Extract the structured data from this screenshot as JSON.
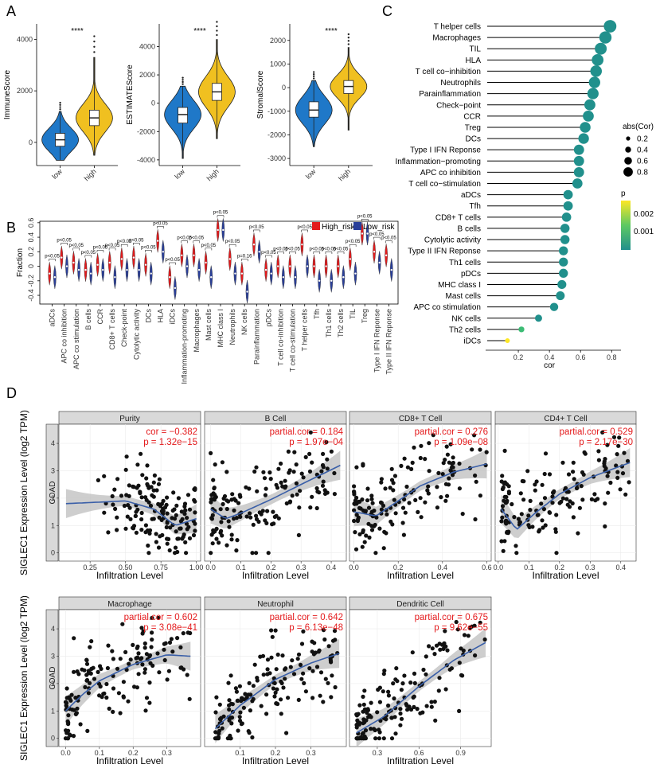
{
  "panels": {
    "a": "A",
    "b": "B",
    "c": "C",
    "d": "D"
  },
  "colors": {
    "low": "#1f78c8",
    "high": "#f0c020",
    "high_risk": "#e31a1c",
    "low_risk": "#2a3f9a",
    "lollipop": "#21908c",
    "smooth": "#3a5fa8",
    "ci": "#bdbdbd",
    "stat": "#e41a1c"
  },
  "violins_a": [
    {
      "ylabel": "ImmuneScore",
      "ticks": [
        0,
        2000,
        4000
      ],
      "ylim": [
        -900,
        4600
      ],
      "sig": "****",
      "groups": [
        "low",
        "high"
      ],
      "summary": [
        {
          "min": -700,
          "q1": -150,
          "median": 100,
          "q3": 350,
          "max": 1200
        },
        {
          "min": -500,
          "q1": 650,
          "median": 950,
          "q3": 1250,
          "max": 3300
        }
      ]
    },
    {
      "ylabel": "ESTIMATEScore",
      "ticks": [
        -4000,
        -2000,
        0,
        2000,
        4000
      ],
      "ylim": [
        -4400,
        5600
      ],
      "sig": "****",
      "groups": [
        "low",
        "high"
      ],
      "summary": [
        {
          "min": -3900,
          "q1": -1400,
          "median": -800,
          "q3": -300,
          "max": 1200
        },
        {
          "min": -2500,
          "q1": 200,
          "median": 800,
          "q3": 1400,
          "max": 4500
        }
      ]
    },
    {
      "ylabel": "StromalScore",
      "ticks": [
        -3000,
        -2000,
        -1000,
        0,
        1000,
        2000
      ],
      "ylim": [
        -3300,
        2700
      ],
      "sig": "****",
      "groups": [
        "low",
        "high"
      ],
      "summary": [
        {
          "min": -2500,
          "q1": -1250,
          "median": -950,
          "q3": -600,
          "max": 300
        },
        {
          "min": -1800,
          "q1": -250,
          "median": 50,
          "q3": 300,
          "max": 1700
        }
      ]
    }
  ],
  "violin_b": {
    "ylabel": "Fraction",
    "yticks": [
      -0.4,
      -0.2,
      0.0,
      0.2,
      0.4,
      0.6
    ],
    "ylim": [
      -0.52,
      0.62
    ],
    "legend": [
      "High_risk",
      "Low_risk"
    ],
    "categories": [
      "aDCs",
      "APC co inhibition",
      "APC co stimulation",
      "B cells",
      "CCR",
      "CD8+ T cells",
      "Check-point",
      "Cytolytic activity",
      "DCs",
      "HLA",
      "iDCs",
      "Inflammation-promoting",
      "Macrophages",
      "Mast cells",
      "MHC class I",
      "Neutrophils",
      "NK cells",
      "Parainflammation",
      "pDCs",
      "T cell co-inhibition",
      "T cell co-stimulation",
      "T helper cells",
      "Tfh",
      "Th1 cells",
      "Th2 cells",
      "TIL",
      "Treg",
      "Type I IFN Reponse",
      "Type II IFN Reponse"
    ],
    "high_medians": [
      -0.1,
      0.12,
      0.05,
      -0.05,
      0.02,
      0.05,
      0.1,
      0.12,
      0.02,
      0.35,
      -0.15,
      0.15,
      0.15,
      0.05,
      0.5,
      0.1,
      -0.1,
      0.3,
      -0.05,
      0.0,
      0.0,
      0.3,
      0.0,
      0.0,
      0.0,
      0.1,
      0.45,
      0.2,
      0.15
    ],
    "low_medians": [
      -0.15,
      0.0,
      -0.05,
      -0.1,
      -0.05,
      -0.15,
      -0.05,
      -0.05,
      -0.1,
      0.2,
      -0.3,
      0.0,
      -0.05,
      -0.15,
      0.5,
      -0.1,
      -0.35,
      0.2,
      -0.1,
      -0.15,
      -0.15,
      0.0,
      -0.2,
      -0.2,
      -0.15,
      -0.1,
      0.45,
      0.05,
      -0.05
    ],
    "pvalues": [
      "p<0.05",
      "p<0.05",
      "p<0.05",
      "p<0.05",
      "p<0.05",
      "p<0.05",
      "p<0.05",
      "p<0.05",
      "p<0.05",
      "p<0.05",
      "p<0.05",
      "p<0.05",
      "p<0.05",
      "p<0.05",
      "p<0.05",
      "p<0.05",
      "p=0.16",
      "p<0.05",
      "p<0.05",
      "p<0.05",
      "p<0.05",
      "p<0.05",
      "p<0.05",
      "p<0.05",
      "p<0.05",
      "p<0.05",
      "p<0.05",
      "p<0.05",
      "p<0.05"
    ]
  },
  "chart_data": [
    {
      "type": "lollipop",
      "xlabel": "cor",
      "xticks": [
        0.2,
        0.4,
        0.6,
        0.8
      ],
      "xlim": [
        0.0,
        0.86
      ],
      "legend_size_title": "abs(Cor)",
      "legend_size_values": [
        "0.2",
        "0.4",
        "0.6",
        "0.8"
      ],
      "legend_color_title": "p",
      "legend_color_values": [
        "0.002",
        "0.001"
      ],
      "categories": [
        "T helper cells",
        "Macrophages",
        "TIL",
        "HLA",
        "T cell co−inhibition",
        "Neutrophils",
        "Parainflammation",
        "Check−point",
        "CCR",
        "Treg",
        "DCs",
        "Type I IFN Reponse",
        "Inflammation−promoting",
        "APC co inhibition",
        "T cell co−stimulation",
        "aDCs",
        "Tfh",
        "CD8+ T cells",
        "B cells",
        "Cytolytic activity",
        "Type II IFN Reponse",
        "Th1 cells",
        "pDCs",
        "MHC class I",
        "Mast cells",
        "APC co stimulation",
        "NK cells",
        "Th2 cells",
        "iDCs"
      ],
      "values": [
        0.79,
        0.76,
        0.73,
        0.71,
        0.7,
        0.69,
        0.68,
        0.66,
        0.65,
        0.63,
        0.62,
        0.59,
        0.59,
        0.59,
        0.58,
        0.52,
        0.52,
        0.51,
        0.5,
        0.5,
        0.49,
        0.49,
        0.49,
        0.48,
        0.47,
        0.43,
        0.33,
        0.22,
        0.13
      ]
    },
    {
      "type": "scatter",
      "ylabel": "SIGLEC1 Expression Level (log2 TPM)",
      "xlabel": "Infiltration Level",
      "row_label": "COAD",
      "yticks": [
        0,
        1,
        2,
        3,
        4
      ],
      "ylim": [
        -0.3,
        4.7
      ],
      "facets": [
        {
          "name": "Purity",
          "stat1": "cor = −0.382",
          "stat2": "p = 1.32e−15",
          "xlim": [
            0.03,
            1.03
          ],
          "xticks": [
            "0.25",
            "0.50",
            "0.75",
            "1.00"
          ],
          "xtickvals": [
            0.25,
            0.5,
            0.75,
            1.0
          ],
          "trend": [
            [
              0.08,
              1.8
            ],
            [
              0.3,
              1.85
            ],
            [
              0.5,
              1.9
            ],
            [
              0.7,
              1.6
            ],
            [
              0.85,
              1.0
            ],
            [
              1.0,
              1.25
            ]
          ]
        },
        {
          "name": "B Cell",
          "stat1": "partial.cor = 0.184",
          "stat2": "p = 1.97e−04",
          "xlim": [
            -0.02,
            0.45
          ],
          "xticks": [
            "0.0",
            "0.1",
            "0.2",
            "0.3",
            "0.4"
          ],
          "xtickvals": [
            0.0,
            0.1,
            0.2,
            0.3,
            0.4
          ],
          "trend": [
            [
              0.0,
              1.6
            ],
            [
              0.05,
              1.25
            ],
            [
              0.1,
              1.45
            ],
            [
              0.2,
              1.95
            ],
            [
              0.3,
              2.5
            ],
            [
              0.43,
              3.2
            ]
          ]
        },
        {
          "name": "CD8+ T Cell",
          "stat1": "partial.cor = 0.276",
          "stat2": "p = 1.09e−08",
          "xlim": [
            -0.02,
            0.62
          ],
          "xticks": [
            "0.0",
            "0.2",
            "0.4",
            "0.6"
          ],
          "xtickvals": [
            0.0,
            0.2,
            0.4,
            0.6
          ],
          "trend": [
            [
              0.0,
              1.5
            ],
            [
              0.1,
              1.35
            ],
            [
              0.2,
              1.9
            ],
            [
              0.3,
              2.45
            ],
            [
              0.45,
              2.95
            ],
            [
              0.6,
              3.25
            ]
          ]
        },
        {
          "name": "CD4+ T Cell",
          "stat1": "partial.cor = 0.529",
          "stat2": "p = 2.17e−30",
          "xlim": [
            -0.01,
            0.45
          ],
          "xticks": [
            "0.0",
            "0.1",
            "0.2",
            "0.3",
            "0.4"
          ],
          "xtickvals": [
            0.0,
            0.1,
            0.2,
            0.3,
            0.4
          ],
          "trend": [
            [
              0.01,
              1.6
            ],
            [
              0.06,
              0.85
            ],
            [
              0.12,
              1.45
            ],
            [
              0.2,
              2.15
            ],
            [
              0.3,
              2.75
            ],
            [
              0.43,
              3.3
            ]
          ]
        },
        {
          "name": "Macrophage",
          "stat1": "partial.cor = 0.602",
          "stat2": "p = 3.08e−41",
          "xlim": [
            -0.02,
            0.4
          ],
          "xticks": [
            "0.0",
            "0.1",
            "0.2",
            "0.3"
          ],
          "xtickvals": [
            0.0,
            0.1,
            0.2,
            0.3
          ],
          "trend": [
            [
              0.0,
              1.0
            ],
            [
              0.05,
              1.6
            ],
            [
              0.1,
              2.1
            ],
            [
              0.2,
              2.7
            ],
            [
              0.3,
              3.05
            ],
            [
              0.37,
              3.0
            ]
          ]
        },
        {
          "name": "Neutrophil",
          "stat1": "partial.cor = 0.642",
          "stat2": "p = 6.13e−48",
          "xlim": [
            0.0,
            0.4
          ],
          "xticks": [
            "0.1",
            "0.2",
            "0.3"
          ],
          "xtickvals": [
            0.1,
            0.2,
            0.3
          ],
          "trend": [
            [
              0.03,
              0.35
            ],
            [
              0.1,
              1.2
            ],
            [
              0.2,
              2.15
            ],
            [
              0.3,
              2.75
            ],
            [
              0.38,
              3.1
            ]
          ]
        },
        {
          "name": "Dendritic Cell",
          "stat1": "partial.cor = 0.675",
          "stat2": "p = 9.62e−55",
          "xlim": [
            0.1,
            1.12
          ],
          "xticks": [
            "0.3",
            "0.6",
            "0.9"
          ],
          "xtickvals": [
            0.3,
            0.6,
            0.9
          ],
          "trend": [
            [
              0.15,
              0.2
            ],
            [
              0.35,
              0.8
            ],
            [
              0.6,
              1.9
            ],
            [
              0.85,
              2.85
            ],
            [
              1.08,
              3.5
            ]
          ]
        }
      ]
    }
  ]
}
